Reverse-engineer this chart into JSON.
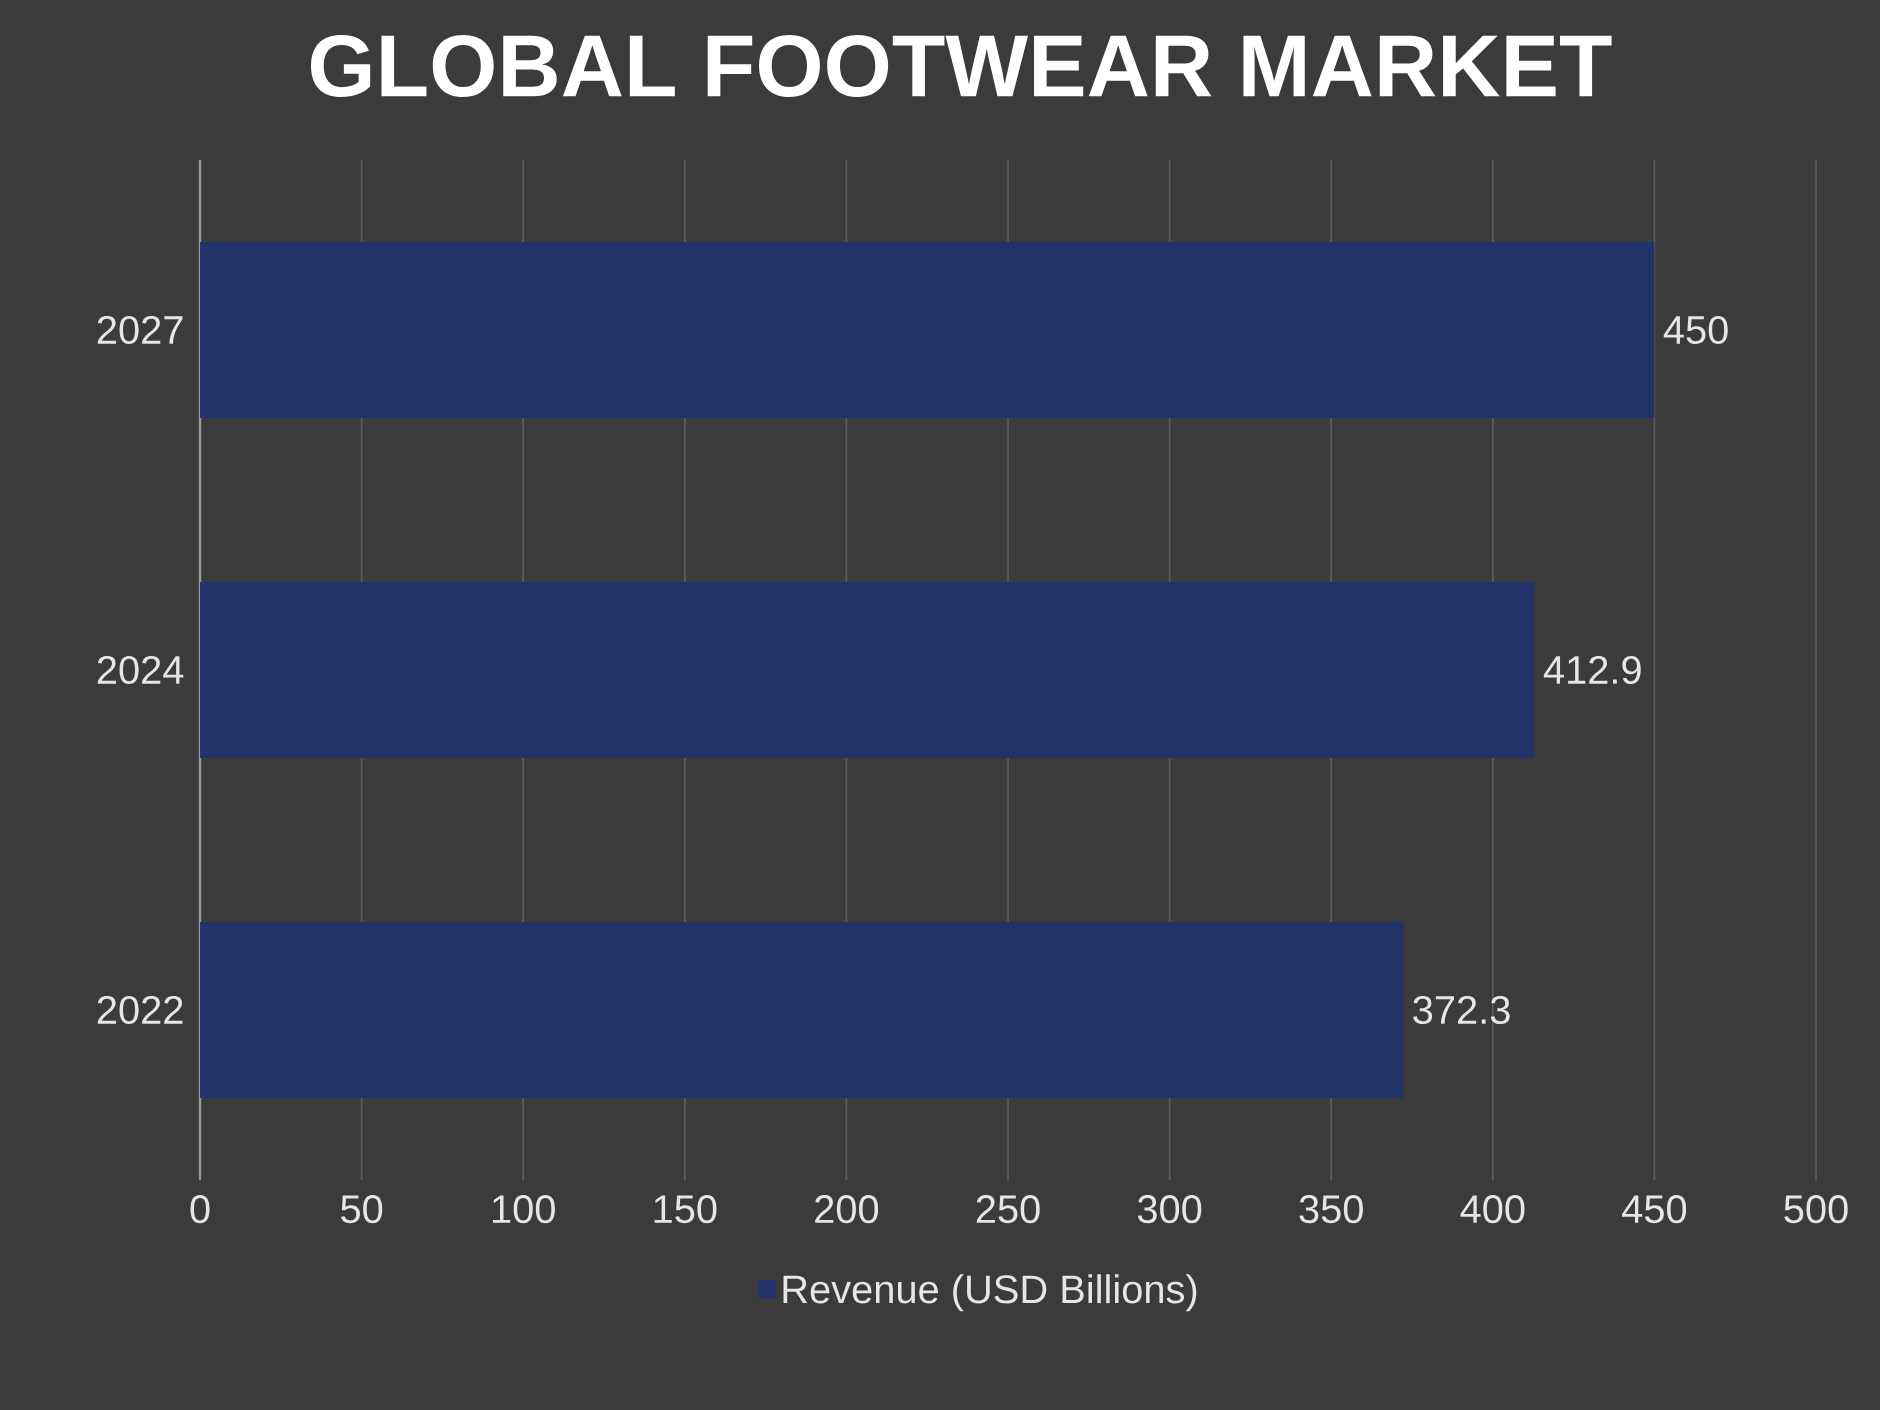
{
  "chart_data": {
    "type": "bar",
    "orientation": "horizontal",
    "title": "GLOBAL FOOTWEAR MARKET",
    "categories": [
      "2027",
      "2024",
      "2022"
    ],
    "series": [
      {
        "name": "Revenue (USD Billions)",
        "color": "#22336a",
        "values": [
          450,
          412.9,
          372.3
        ]
      }
    ],
    "xlim": [
      0,
      500
    ],
    "xticks": [
      0,
      50,
      100,
      150,
      200,
      250,
      300,
      350,
      400,
      450,
      500
    ],
    "grid": "x",
    "legend": "bottom",
    "data_labels": true
  }
}
